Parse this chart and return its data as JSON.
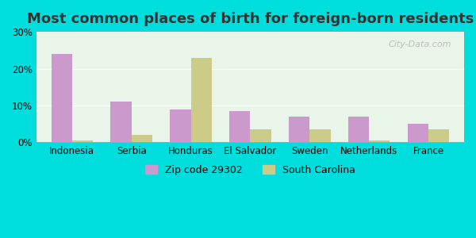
{
  "title": "Most common places of birth for foreign-born residents",
  "categories": [
    "Indonesia",
    "Serbia",
    "Honduras",
    "El Salvador",
    "Sweden",
    "Netherlands",
    "France"
  ],
  "zip_values": [
    24.0,
    11.0,
    9.0,
    8.5,
    7.0,
    7.0,
    5.0
  ],
  "sc_values": [
    0.5,
    2.0,
    23.0,
    3.5,
    3.5,
    0.5,
    3.5
  ],
  "zip_color": "#cc99cc",
  "sc_color": "#cccc88",
  "bg_outer": "#00dddd",
  "bg_inner_top": "#e8f5e8",
  "bg_inner_bottom": "#f5ffe8",
  "watermark": "City-Data.com",
  "legend_zip": "Zip code 29302",
  "legend_sc": "South Carolina",
  "ylim": [
    0,
    30
  ],
  "yticks": [
    0,
    10,
    20,
    30
  ],
  "bar_width": 0.35,
  "title_fontsize": 13,
  "tick_fontsize": 8.5,
  "legend_fontsize": 9
}
